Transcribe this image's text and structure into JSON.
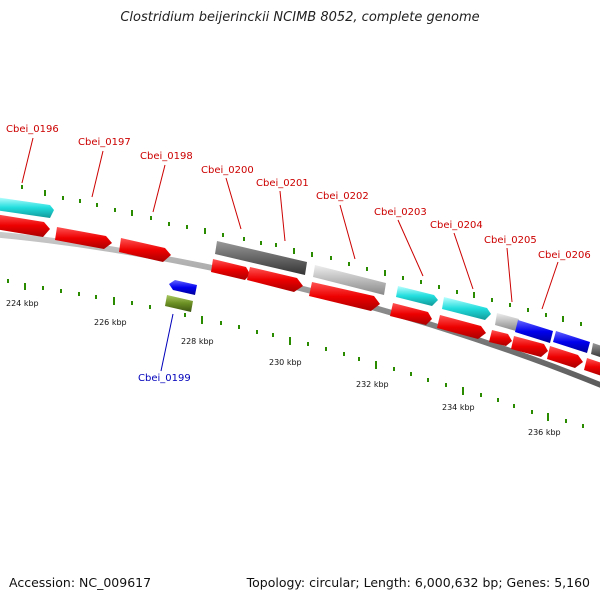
{
  "title": "Clostridium beijerinckii NCIMB 8052, complete genome",
  "footer": {
    "accession": "Accession: NC_009617",
    "topology": "Topology: circular; Length: 6,000,632 bp; Genes: 5,160"
  },
  "colors": {
    "label_top": "#cc0000",
    "label_bottom": "#0000bb",
    "tick": "#2a8a00",
    "backbone": "#888888",
    "red": "#ff0000",
    "cyan": "#22dddd",
    "dark_gray": "#666666",
    "light_gray": "#bbbbbb",
    "blue": "#0000ee",
    "olive": "#6b8e23"
  },
  "scale_labels": [
    "224 kbp",
    "226 kbp",
    "228 kbp",
    "230 kbp",
    "232 kbp",
    "234 kbp",
    "236 kbp"
  ],
  "gene_labels": [
    {
      "text": "Cbei_0196",
      "position": "above"
    },
    {
      "text": "Cbei_0197",
      "position": "above"
    },
    {
      "text": "Cbei_0198",
      "position": "above"
    },
    {
      "text": "Cbei_0200",
      "position": "above"
    },
    {
      "text": "Cbei_0201",
      "position": "above"
    },
    {
      "text": "Cbei_0202",
      "position": "above"
    },
    {
      "text": "Cbei_0203",
      "position": "above"
    },
    {
      "text": "Cbei_0204",
      "position": "above"
    },
    {
      "text": "Cbei_0205",
      "position": "above"
    },
    {
      "text": "Cbei_0206",
      "position": "above"
    },
    {
      "text": "Cbei_0199",
      "position": "below"
    }
  ]
}
